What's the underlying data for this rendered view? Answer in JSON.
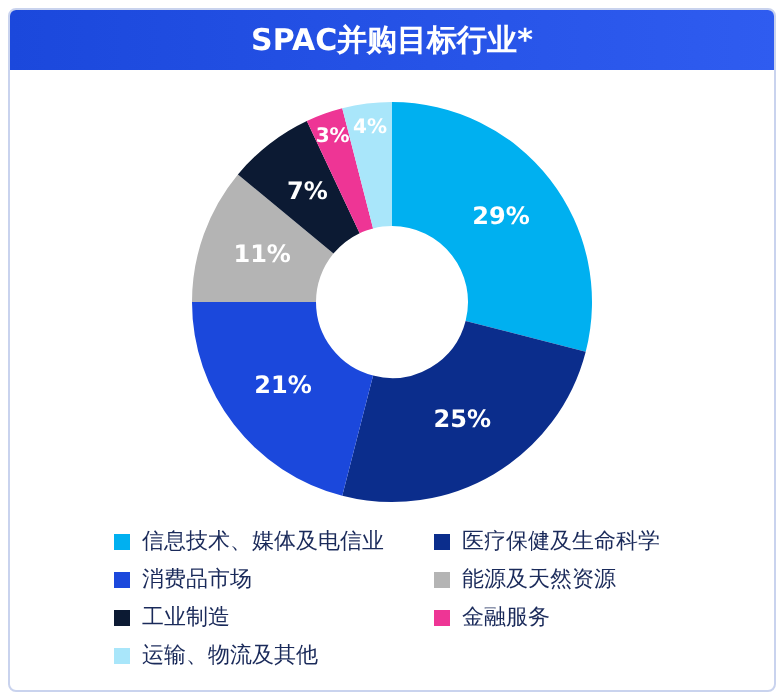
{
  "chart_data": {
    "type": "donut",
    "title": "SPAC并购目标行业*",
    "categories": [
      "信息技术、媒体及电信业",
      "医疗保健及生命科学",
      "消费品市场",
      "能源及天然资源",
      "工业制造",
      "金融服务",
      "运输、物流及其他"
    ],
    "values": [
      29,
      25,
      21,
      11,
      7,
      3,
      4
    ],
    "colors": [
      "#00b0f0",
      "#0b2d8c",
      "#1b48dc",
      "#b4b4b4",
      "#0c1a33",
      "#ee3595",
      "#a9e6fa"
    ],
    "value_labels": [
      "29%",
      "25%",
      "21%",
      "11%",
      "7%",
      "3%",
      "4%"
    ],
    "legend": "bottom"
  }
}
